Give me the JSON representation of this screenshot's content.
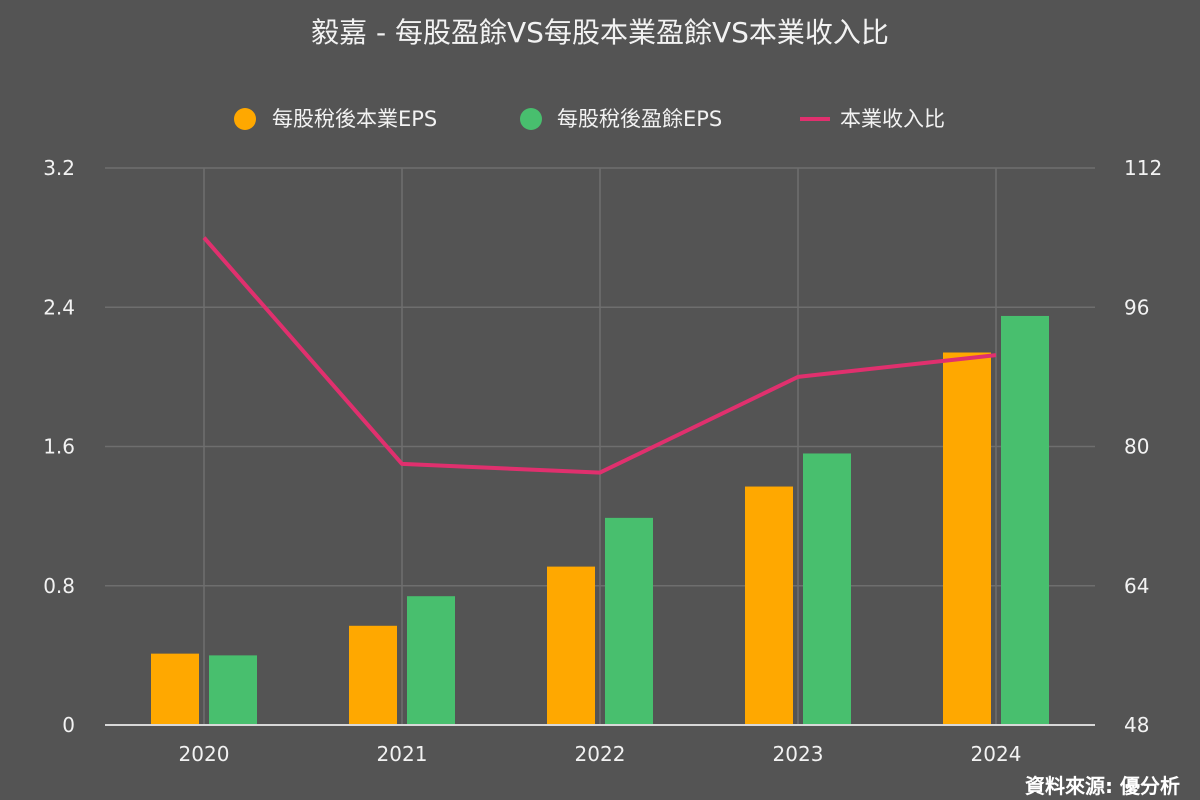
{
  "chart_data": {
    "type": "bar",
    "title": "毅嘉 - 每股盈餘VS每股本業盈餘VS本業收入比",
    "categories": [
      "2020",
      "2021",
      "2022",
      "2023",
      "2024"
    ],
    "series": [
      {
        "name": "每股稅後本業EPS",
        "kind": "bar",
        "axis": "left",
        "color": "#FFA800",
        "values": [
          0.41,
          0.57,
          0.91,
          1.37,
          2.14
        ]
      },
      {
        "name": "每股稅後盈餘EPS",
        "kind": "bar",
        "axis": "left",
        "color": "#48BF6E",
        "values": [
          0.4,
          0.74,
          1.19,
          1.56,
          2.35
        ]
      },
      {
        "name": "本業收入比",
        "kind": "line",
        "axis": "right",
        "color": "#E0306E",
        "values": [
          104,
          78,
          77,
          88,
          90.5
        ]
      }
    ],
    "y_left": {
      "min": 0,
      "max": 3.2,
      "ticks": [
        "0",
        "0.8",
        "1.6",
        "2.4",
        "3.2"
      ],
      "tick_values": [
        0,
        0.8,
        1.6,
        2.4,
        3.2
      ]
    },
    "y_right": {
      "min": 48,
      "max": 112,
      "ticks": [
        "48",
        "64",
        "80",
        "96",
        "112"
      ],
      "tick_values": [
        48,
        64,
        80,
        96,
        112
      ]
    },
    "grid": true,
    "legend_position": "top",
    "colors": {
      "background": "#545454",
      "grid": "#6e6e6e",
      "axis": "#d8d8d8",
      "text": "#f2f2f2"
    }
  },
  "source_note": "資料來源: 優分析"
}
